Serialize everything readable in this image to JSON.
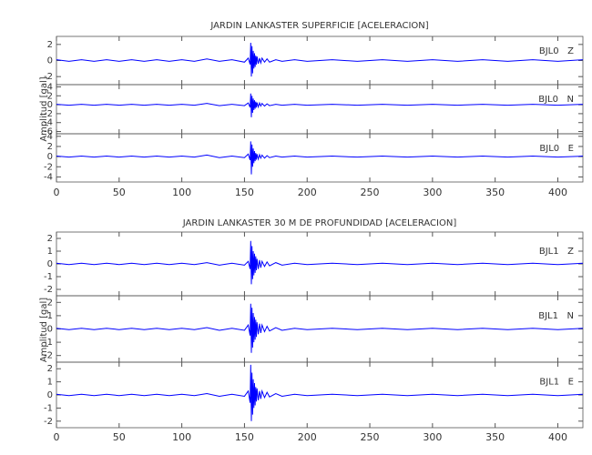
{
  "chart_data": [
    {
      "type": "line",
      "title": "JARDIN LANKASTER SUPERFICIE [ACELERACION]",
      "ylabel": "Amplitud [gal]",
      "xlim": [
        0,
        420
      ],
      "xticks": [
        0,
        50,
        100,
        150,
        200,
        250,
        300,
        350,
        400
      ],
      "x": [
        0,
        10,
        20,
        30,
        40,
        50,
        60,
        70,
        80,
        90,
        100,
        110,
        120,
        130,
        140,
        150,
        153,
        154.5,
        155,
        155.5,
        156,
        156.5,
        157,
        157.5,
        158,
        158.5,
        159,
        159.5,
        160,
        161,
        162,
        163,
        164,
        166,
        168,
        170,
        175,
        180,
        190,
        200,
        220,
        240,
        260,
        280,
        300,
        320,
        340,
        360,
        380,
        400,
        420
      ],
      "series": [
        {
          "name": "BJL0   Z",
          "color": "#0000ff",
          "ylim": [
            -3,
            3
          ],
          "yticks": [
            -2,
            0,
            2
          ],
          "values": [
            0.1,
            -0.1,
            0.1,
            -0.1,
            0.1,
            -0.1,
            0.1,
            -0.1,
            0.1,
            -0.1,
            0.1,
            -0.1,
            0.2,
            -0.1,
            0.1,
            -0.2,
            0.3,
            -0.5,
            2.2,
            -2.0,
            1.8,
            -1.6,
            1.2,
            -1.0,
            0.9,
            -0.8,
            0.6,
            -0.5,
            0.5,
            -0.4,
            0.3,
            -0.3,
            0.3,
            -0.2,
            0.2,
            -0.2,
            0.1,
            -0.1,
            0.1,
            -0.1,
            0.1,
            -0.1,
            0.1,
            -0.1,
            0.1,
            -0.1,
            0.1,
            -0.1,
            0.1,
            -0.1,
            0.1
          ]
        },
        {
          "name": "BJL0   N",
          "color": "#0000ff",
          "ylim": [
            -6.5,
            4.5
          ],
          "yticks": [
            -6,
            -4,
            -2,
            0,
            2,
            4
          ],
          "values": [
            0.1,
            -0.1,
            0.1,
            -0.1,
            0.1,
            -0.1,
            0.1,
            -0.1,
            0.1,
            -0.1,
            0.1,
            -0.1,
            0.3,
            -0.2,
            0.1,
            -0.2,
            0.4,
            -0.6,
            2.5,
            -2.8,
            2.0,
            -1.8,
            1.4,
            -1.2,
            1.0,
            -0.9,
            0.7,
            -0.6,
            0.5,
            -0.5,
            0.4,
            -0.3,
            0.3,
            -0.3,
            0.2,
            -0.2,
            0.1,
            -0.1,
            0.1,
            -0.1,
            0.1,
            -0.1,
            0.1,
            -0.1,
            0.1,
            -0.1,
            0.1,
            -0.1,
            0.1,
            -0.1,
            0.1
          ]
        },
        {
          "name": "BJL0   E",
          "color": "#0000ff",
          "ylim": [
            -5,
            4.5
          ],
          "yticks": [
            -4,
            -2,
            0,
            2,
            4
          ],
          "values": [
            0.1,
            -0.1,
            0.1,
            -0.1,
            0.1,
            -0.1,
            0.1,
            -0.1,
            0.1,
            -0.1,
            0.1,
            -0.1,
            0.3,
            -0.2,
            0.1,
            -0.2,
            0.5,
            -0.7,
            3.0,
            -3.5,
            2.4,
            -2.0,
            1.6,
            -1.3,
            1.1,
            -0.9,
            0.7,
            -0.6,
            0.5,
            -0.5,
            0.4,
            -0.3,
            0.3,
            -0.3,
            0.2,
            -0.2,
            0.1,
            -0.1,
            0.1,
            -0.1,
            0.1,
            -0.1,
            0.1,
            -0.1,
            0.1,
            -0.1,
            0.1,
            -0.1,
            0.1,
            -0.1,
            0.1
          ]
        }
      ]
    },
    {
      "type": "line",
      "title": "JARDIN LANKASTER 30 M DE PROFUNDIDAD [ACELERACION]",
      "ylabel": "Amplitud [gal]",
      "xlim": [
        0,
        420
      ],
      "xticks": [
        0,
        50,
        100,
        150,
        200,
        250,
        300,
        350,
        400
      ],
      "x": [
        0,
        10,
        20,
        30,
        40,
        50,
        60,
        70,
        80,
        90,
        100,
        110,
        120,
        130,
        140,
        150,
        153,
        154.5,
        155,
        155.5,
        156,
        156.5,
        157,
        157.5,
        158,
        158.5,
        159,
        159.5,
        160,
        161,
        162,
        163,
        164,
        166,
        168,
        170,
        175,
        180,
        190,
        200,
        220,
        240,
        260,
        280,
        300,
        320,
        340,
        360,
        380,
        400,
        420
      ],
      "series": [
        {
          "name": "BJL1   Z",
          "color": "#0000ff",
          "ylim": [
            -2.5,
            2.5
          ],
          "yticks": [
            -2,
            -1,
            0,
            1,
            2
          ],
          "values": [
            0.05,
            -0.05,
            0.05,
            -0.05,
            0.05,
            -0.05,
            0.05,
            -0.05,
            0.05,
            -0.05,
            0.05,
            -0.05,
            0.1,
            -0.1,
            0.05,
            -0.1,
            0.2,
            -0.4,
            1.8,
            -1.6,
            1.4,
            -1.2,
            1.0,
            -0.9,
            0.8,
            -0.7,
            0.6,
            -0.5,
            0.4,
            -0.4,
            0.3,
            -0.3,
            0.2,
            -0.2,
            0.15,
            -0.15,
            0.1,
            -0.1,
            0.05,
            -0.05,
            0.05,
            -0.05,
            0.05,
            -0.05,
            0.05,
            -0.05,
            0.05,
            -0.05,
            0.05,
            -0.05,
            0.05
          ]
        },
        {
          "name": "BJL1   N",
          "color": "#0000ff",
          "ylim": [
            -2.5,
            2.5
          ],
          "yticks": [
            -2,
            -1,
            0,
            1,
            2
          ],
          "values": [
            0.05,
            -0.05,
            0.05,
            -0.05,
            0.05,
            -0.05,
            0.05,
            -0.05,
            0.05,
            -0.05,
            0.05,
            -0.05,
            0.1,
            -0.1,
            0.05,
            -0.1,
            0.3,
            -0.5,
            1.9,
            -1.8,
            1.6,
            -1.4,
            1.2,
            -1.0,
            0.9,
            -0.8,
            0.7,
            -0.6,
            0.5,
            -0.4,
            0.4,
            -0.3,
            0.3,
            -0.2,
            0.2,
            -0.15,
            0.1,
            -0.1,
            0.05,
            -0.05,
            0.05,
            -0.05,
            0.05,
            -0.05,
            0.05,
            -0.05,
            0.05,
            -0.05,
            0.05,
            -0.05,
            0.05
          ]
        },
        {
          "name": "BJL1   E",
          "color": "#0000ff",
          "ylim": [
            -2.5,
            2.5
          ],
          "yticks": [
            -2,
            -1,
            0,
            1,
            2
          ],
          "values": [
            0.05,
            -0.05,
            0.05,
            -0.05,
            0.05,
            -0.05,
            0.05,
            -0.05,
            0.05,
            -0.05,
            0.05,
            -0.05,
            0.1,
            -0.1,
            0.05,
            -0.1,
            0.3,
            -0.6,
            2.3,
            -2.0,
            1.7,
            -1.5,
            1.2,
            -1.0,
            0.9,
            -0.8,
            0.6,
            -0.5,
            0.5,
            -0.4,
            0.3,
            -0.3,
            0.3,
            -0.2,
            0.2,
            -0.15,
            0.1,
            -0.1,
            0.05,
            -0.05,
            0.05,
            -0.05,
            0.05,
            -0.05,
            0.05,
            -0.05,
            0.05,
            -0.05,
            0.05,
            -0.05,
            0.05
          ]
        }
      ]
    }
  ]
}
